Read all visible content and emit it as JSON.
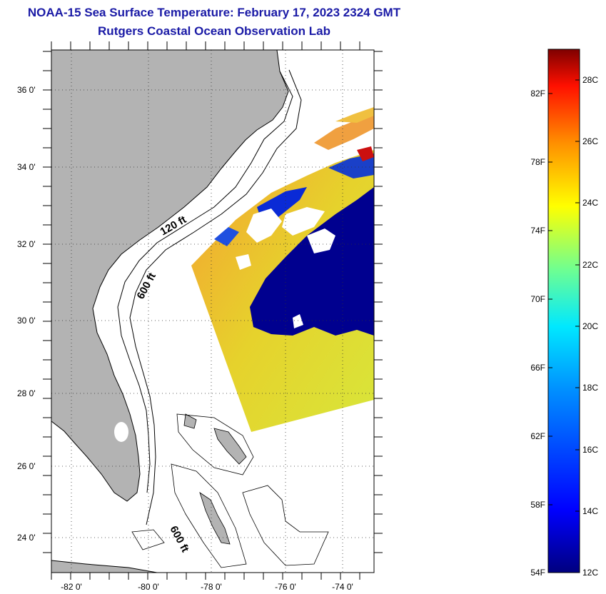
{
  "header": {
    "title": "NOAA-15 Sea Surface Temperature:  February 17, 2023 2324 GMT",
    "subtitle": "Rutgers Coastal Ocean Observation Lab"
  },
  "map": {
    "lat_labels": [
      "36 0'",
      "34 0'",
      "32 0'",
      "30 0'",
      "28 0'",
      "26 0'",
      "24 0'"
    ],
    "lon_labels": [
      "-82 0'",
      "-80 0'",
      "-78 0'",
      "-76 0'",
      "-74 0'"
    ],
    "isobath_labels": [
      "120 ft",
      "600 ft",
      "600 ft"
    ],
    "colors": {
      "land": "#b3b3b3",
      "cold_water": "#00008f",
      "cloud": "#ffffff"
    }
  },
  "colorbar": {
    "fahrenheit_labels": [
      "82F",
      "78F",
      "74F",
      "70F",
      "66F",
      "62F",
      "58F",
      "54F"
    ],
    "celsius_labels": [
      "28C",
      "26C",
      "24C",
      "22C",
      "20C",
      "18C",
      "16C",
      "14C",
      "12C"
    ],
    "range_c": [
      12,
      29
    ],
    "colormap": [
      "#00007f",
      "#0000ff",
      "#0080ff",
      "#00ffff",
      "#80ff80",
      "#ffff00",
      "#ff8000",
      "#ff0000",
      "#7f0000"
    ]
  }
}
